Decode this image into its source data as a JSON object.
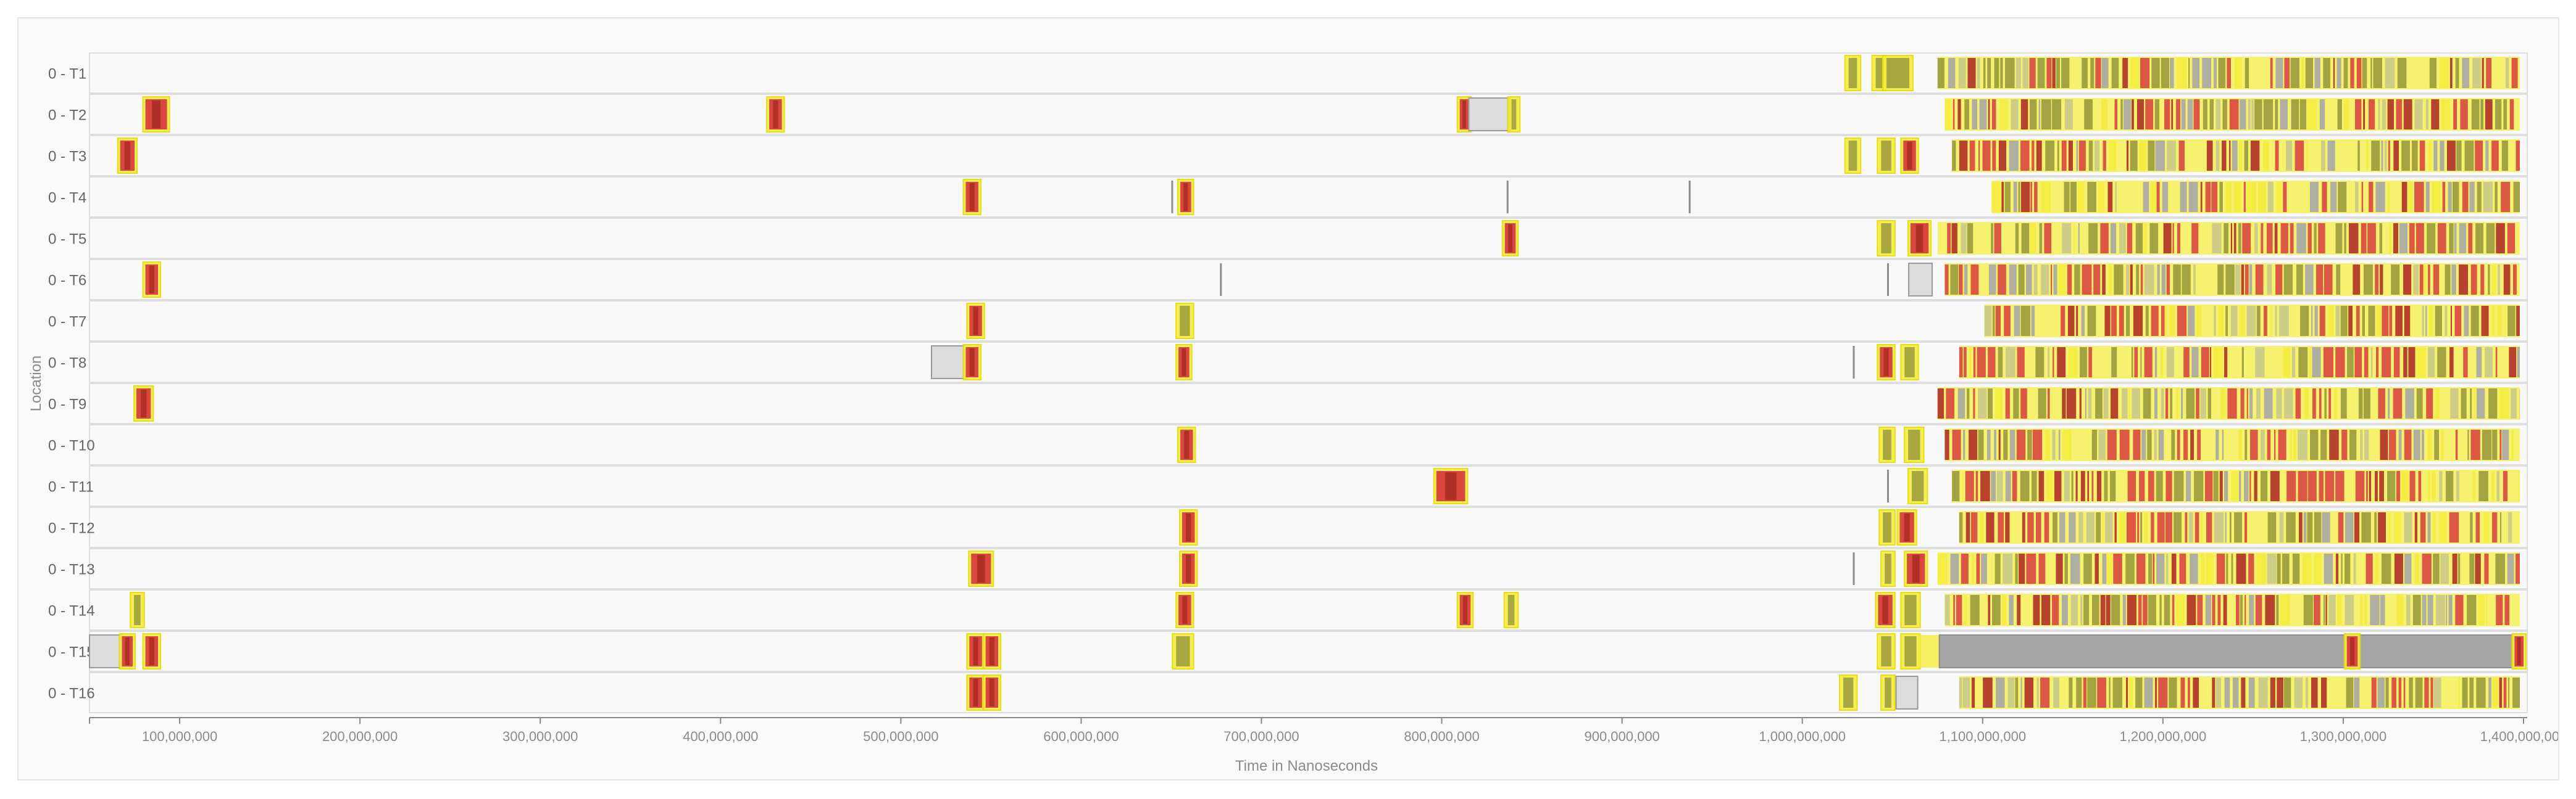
{
  "chart_data": {
    "type": "timeline",
    "ylabel": "Location",
    "xlabel": "Time in Nanoseconds",
    "xlim": [
      50000000,
      1400000000
    ],
    "x_ticks": [
      100000000,
      200000000,
      300000000,
      400000000,
      500000000,
      600000000,
      700000000,
      800000000,
      900000000,
      1000000000,
      1100000000,
      1200000000,
      1300000000,
      1400000000
    ],
    "x_tick_labels": [
      "100,000,000",
      "200,000,000",
      "300,000,000",
      "400,000,000",
      "500,000,000",
      "600,000,000",
      "700,000,000",
      "800,000,000",
      "900,000,000",
      "1,000,000,000",
      "1,100,000,000",
      "1,200,000,000",
      "1,300,000,000",
      "1,400,000,000"
    ],
    "lanes": [
      "0 - T1",
      "0 - T2",
      "0 - T3",
      "0 - T4",
      "0 - T5",
      "0 - T6",
      "0 - T7",
      "0 - T8",
      "0 - T9",
      "0 - T10",
      "0 - T11",
      "0 - T12",
      "0 - T13",
      "0 - T14",
      "0 - T15",
      "0 - T16"
    ],
    "colors": {
      "active": "#f4ed3f",
      "active_border": "#e8d900",
      "inner": "#9b9a3c",
      "hot": "#d9473f",
      "hot_dark": "#b03028",
      "idle": "#dcdcdc",
      "idle_dark": "#a6a6a6",
      "marker": "#8d8d8d",
      "lane_bg": "#f9f9f9",
      "lane_border": "#dedede"
    },
    "dense_region": [
      1075000000,
      1400000000
    ],
    "events": [
      {
        "lane": 0,
        "start": 1025000000,
        "end": 1031000000,
        "kind": "active"
      },
      {
        "lane": 0,
        "start": 1040000000,
        "end": 1045000000,
        "kind": "active"
      },
      {
        "lane": 0,
        "start": 1046000000,
        "end": 1060000000,
        "kind": "active"
      },
      {
        "lane": 1,
        "start": 81000000,
        "end": 93000000,
        "kind": "hot"
      },
      {
        "lane": 1,
        "start": 427000000,
        "end": 434000000,
        "kind": "hot"
      },
      {
        "lane": 1,
        "start": 810000000,
        "end": 815000000,
        "kind": "hot"
      },
      {
        "lane": 1,
        "start": 815000000,
        "end": 838000000,
        "kind": "idle"
      },
      {
        "lane": 1,
        "start": 838000000,
        "end": 842000000,
        "kind": "active"
      },
      {
        "lane": 2,
        "start": 67000000,
        "end": 75000000,
        "kind": "hot"
      },
      {
        "lane": 2,
        "start": 1025000000,
        "end": 1031000000,
        "kind": "active"
      },
      {
        "lane": 2,
        "start": 1043000000,
        "end": 1050000000,
        "kind": "active"
      },
      {
        "lane": 2,
        "start": 1056000000,
        "end": 1063000000,
        "kind": "hot"
      },
      {
        "lane": 3,
        "start": 536000000,
        "end": 543000000,
        "kind": "hot"
      },
      {
        "lane": 3,
        "start": 650000000,
        "end": 651500000,
        "kind": "marker"
      },
      {
        "lane": 3,
        "start": 655000000,
        "end": 661000000,
        "kind": "hot"
      },
      {
        "lane": 3,
        "start": 836000000,
        "end": 837500000,
        "kind": "marker"
      },
      {
        "lane": 3,
        "start": 937000000,
        "end": 938500000,
        "kind": "marker"
      },
      {
        "lane": 4,
        "start": 835000000,
        "end": 841000000,
        "kind": "hot"
      },
      {
        "lane": 4,
        "start": 1043000000,
        "end": 1050000000,
        "kind": "active"
      },
      {
        "lane": 4,
        "start": 1060000000,
        "end": 1070000000,
        "kind": "hot"
      },
      {
        "lane": 5,
        "start": 81000000,
        "end": 88000000,
        "kind": "hot"
      },
      {
        "lane": 5,
        "start": 677000000,
        "end": 678500000,
        "kind": "marker"
      },
      {
        "lane": 5,
        "start": 1047000000,
        "end": 1048500000,
        "kind": "marker"
      },
      {
        "lane": 5,
        "start": 1059000000,
        "end": 1072000000,
        "kind": "idle"
      },
      {
        "lane": 6,
        "start": 538000000,
        "end": 545000000,
        "kind": "hot"
      },
      {
        "lane": 6,
        "start": 654000000,
        "end": 661000000,
        "kind": "active"
      },
      {
        "lane": 7,
        "start": 517000000,
        "end": 536000000,
        "kind": "idle"
      },
      {
        "lane": 7,
        "start": 536000000,
        "end": 543000000,
        "kind": "hot"
      },
      {
        "lane": 7,
        "start": 654000000,
        "end": 660000000,
        "kind": "hot"
      },
      {
        "lane": 7,
        "start": 1028000000,
        "end": 1029500000,
        "kind": "marker"
      },
      {
        "lane": 7,
        "start": 1043000000,
        "end": 1050000000,
        "kind": "hot"
      },
      {
        "lane": 7,
        "start": 1056000000,
        "end": 1063000000,
        "kind": "active"
      },
      {
        "lane": 8,
        "start": 76000000,
        "end": 84000000,
        "kind": "hot"
      },
      {
        "lane": 9,
        "start": 655000000,
        "end": 662000000,
        "kind": "hot"
      },
      {
        "lane": 9,
        "start": 1044000000,
        "end": 1050000000,
        "kind": "active"
      },
      {
        "lane": 9,
        "start": 1058000000,
        "end": 1066000000,
        "kind": "active"
      },
      {
        "lane": 10,
        "start": 797000000,
        "end": 813000000,
        "kind": "hot"
      },
      {
        "lane": 10,
        "start": 1047000000,
        "end": 1048500000,
        "kind": "marker"
      },
      {
        "lane": 10,
        "start": 1060000000,
        "end": 1068000000,
        "kind": "active"
      },
      {
        "lane": 11,
        "start": 656000000,
        "end": 663000000,
        "kind": "hot"
      },
      {
        "lane": 11,
        "start": 1044000000,
        "end": 1050000000,
        "kind": "active"
      },
      {
        "lane": 11,
        "start": 1054000000,
        "end": 1062000000,
        "kind": "hot"
      },
      {
        "lane": 12,
        "start": 539000000,
        "end": 550000000,
        "kind": "hot"
      },
      {
        "lane": 12,
        "start": 656000000,
        "end": 663000000,
        "kind": "hot"
      },
      {
        "lane": 12,
        "start": 1028000000,
        "end": 1029500000,
        "kind": "marker"
      },
      {
        "lane": 12,
        "start": 1045000000,
        "end": 1050000000,
        "kind": "active"
      },
      {
        "lane": 12,
        "start": 1058000000,
        "end": 1068000000,
        "kind": "hot"
      },
      {
        "lane": 13,
        "start": 74000000,
        "end": 79000000,
        "kind": "active"
      },
      {
        "lane": 13,
        "start": 654000000,
        "end": 661000000,
        "kind": "hot"
      },
      {
        "lane": 13,
        "start": 810000000,
        "end": 816000000,
        "kind": "hot"
      },
      {
        "lane": 13,
        "start": 836000000,
        "end": 841000000,
        "kind": "active"
      },
      {
        "lane": 13,
        "start": 1042000000,
        "end": 1050000000,
        "kind": "hot"
      },
      {
        "lane": 13,
        "start": 1056000000,
        "end": 1064000000,
        "kind": "active"
      },
      {
        "lane": 14,
        "start": 50000000,
        "end": 68000000,
        "kind": "idle"
      },
      {
        "lane": 14,
        "start": 68000000,
        "end": 74000000,
        "kind": "hot"
      },
      {
        "lane": 14,
        "start": 81000000,
        "end": 88000000,
        "kind": "hot"
      },
      {
        "lane": 14,
        "start": 538000000,
        "end": 545000000,
        "kind": "hot"
      },
      {
        "lane": 14,
        "start": 547000000,
        "end": 554000000,
        "kind": "hot"
      },
      {
        "lane": 14,
        "start": 652000000,
        "end": 661000000,
        "kind": "active"
      },
      {
        "lane": 14,
        "start": 1043000000,
        "end": 1050000000,
        "kind": "active"
      },
      {
        "lane": 14,
        "start": 1056000000,
        "end": 1064000000,
        "kind": "active"
      },
      {
        "lane": 15,
        "start": 538000000,
        "end": 545000000,
        "kind": "hot"
      },
      {
        "lane": 15,
        "start": 547000000,
        "end": 554000000,
        "kind": "hot"
      },
      {
        "lane": 15,
        "start": 1022000000,
        "end": 1029000000,
        "kind": "active"
      },
      {
        "lane": 15,
        "start": 1045000000,
        "end": 1050000000,
        "kind": "active"
      },
      {
        "lane": 15,
        "start": 1052000000,
        "end": 1064000000,
        "kind": "idle"
      }
    ],
    "long_blocks": [
      {
        "lane": 14,
        "start": 1076000000,
        "end": 1395000000,
        "kind": "idle_dark"
      },
      {
        "lane": 14,
        "start": 1302000000,
        "end": 1308000000,
        "kind": "hot"
      },
      {
        "lane": 14,
        "start": 1395000000,
        "end": 1400000000,
        "kind": "hot"
      }
    ]
  }
}
